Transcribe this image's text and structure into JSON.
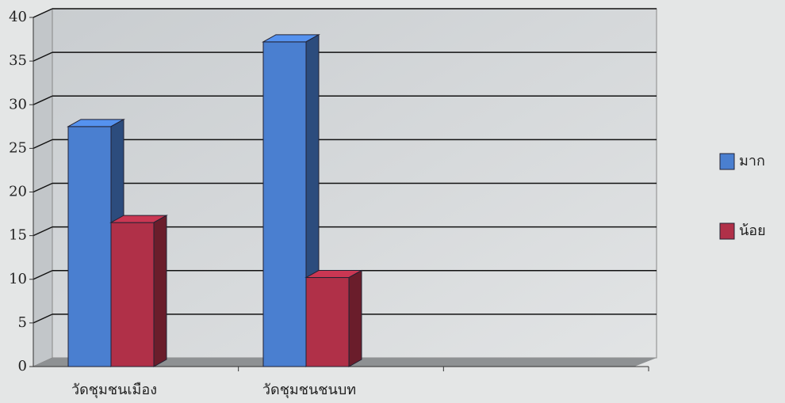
{
  "chart_data": {
    "type": "bar3d",
    "categories": [
      "วัดชุมชนเมือง",
      "วัดชุมชนชนบท",
      null
    ],
    "series": [
      {
        "name": "มาก",
        "color": "#4a7fd0",
        "values": [
          27.5,
          37.2,
          null
        ]
      },
      {
        "name": "น้อย",
        "color": "#b03048",
        "values": [
          16.5,
          10.2,
          null
        ]
      }
    ],
    "ylim": [
      0,
      40
    ],
    "yticks": [
      0,
      5,
      10,
      15,
      20,
      25,
      30,
      35,
      40
    ],
    "grid": true,
    "legend": "right"
  }
}
